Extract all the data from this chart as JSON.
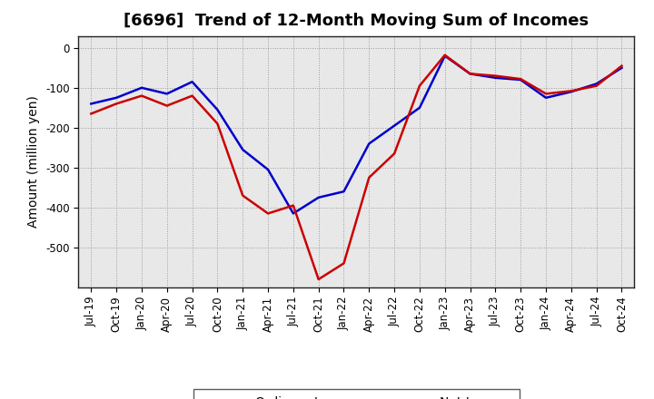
{
  "title": "[6696]  Trend of 12-Month Moving Sum of Incomes",
  "ylabel": "Amount (million yen)",
  "x_labels": [
    "Jul-19",
    "Oct-19",
    "Jan-20",
    "Apr-20",
    "Jul-20",
    "Oct-20",
    "Jan-21",
    "Apr-21",
    "Jul-21",
    "Oct-21",
    "Jan-22",
    "Apr-22",
    "Jul-22",
    "Oct-22",
    "Jan-23",
    "Apr-23",
    "Jul-23",
    "Oct-23",
    "Jan-24",
    "Apr-24",
    "Jul-24",
    "Oct-24"
  ],
  "ordinary_income": [
    -140,
    -125,
    -100,
    -115,
    -85,
    -155,
    -255,
    -305,
    -415,
    -375,
    -360,
    -240,
    -195,
    -150,
    -20,
    -65,
    -75,
    -80,
    -125,
    -110,
    -90,
    -50
  ],
  "net_income": [
    -165,
    -140,
    -120,
    -145,
    -120,
    -190,
    -370,
    -415,
    -395,
    -580,
    -540,
    -325,
    -265,
    -95,
    -18,
    -65,
    -70,
    -78,
    -115,
    -108,
    -95,
    -45
  ],
  "ylim": [
    -600,
    30
  ],
  "yticks": [
    0,
    -100,
    -200,
    -300,
    -400,
    -500
  ],
  "ordinary_color": "#0000CC",
  "net_color": "#CC0000",
  "bg_color": "#FFFFFF",
  "plot_bg_color": "#E8E8E8",
  "grid_color": "#999999",
  "title_fontsize": 13,
  "label_fontsize": 10,
  "tick_fontsize": 8.5,
  "legend_fontsize": 10,
  "linewidth": 1.8
}
